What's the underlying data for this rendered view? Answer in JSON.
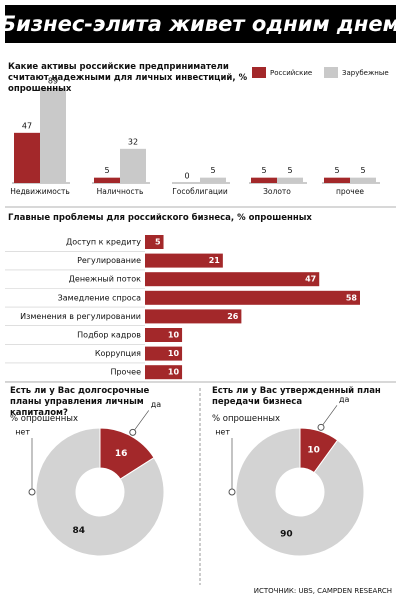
{
  "title": "Бизнес-элита живет одним днем",
  "source": "ИСТОЧНИК: UBS, CAMPDEN RESEARCH",
  "chart_data": [
    {
      "type": "bar",
      "title": "Какие активы российские предприниматели считают надежными для личных инвестиций, % опрошенных",
      "categories": [
        "Недвижимость",
        "Наличность",
        "Гособлигации",
        "Золото",
        "прочее"
      ],
      "series": [
        {
          "name": "Российские",
          "color": "#a3282a",
          "values": [
            47,
            5,
            0,
            5,
            5
          ]
        },
        {
          "name": "Зарубежные",
          "color": "#c9c9c9",
          "values": [
            89,
            32,
            5,
            5,
            5
          ]
        }
      ]
    },
    {
      "type": "barh",
      "title": "Главные проблемы для российского бизнеса, % опрошенных",
      "categories": [
        "Доступ к кредиту",
        "Регулирование",
        "Денежный поток",
        "Замедление спроса",
        "Изменения в регулировании",
        "Подбор кадров",
        "Коррупция",
        "Прочее"
      ],
      "values": [
        5,
        21,
        47,
        58,
        26,
        10,
        10,
        10
      ],
      "color": "#a3282a"
    },
    {
      "type": "donut",
      "title": "Есть ли у Вас долгосрочные планы управления личным капиталом?",
      "subtitle": "% опрошенных",
      "categories": [
        "да",
        "нет"
      ],
      "values": [
        16,
        84
      ],
      "colors": [
        "#a3282a",
        "#d3d3d3"
      ]
    },
    {
      "type": "donut",
      "title": "Есть ли у Вас утвержденный план передачи бизнеса",
      "subtitle": "% опрошенных",
      "categories": [
        "да",
        "нет"
      ],
      "values": [
        10,
        90
      ],
      "colors": [
        "#a3282a",
        "#d3d3d3"
      ]
    }
  ]
}
